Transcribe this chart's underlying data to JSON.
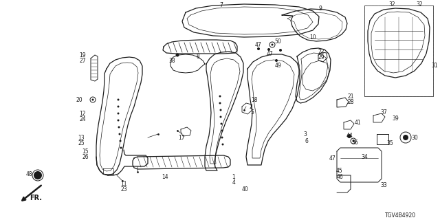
{
  "bg_color": "#ffffff",
  "line_color": "#1a1a1a",
  "diagram_code": "TGV4B4920",
  "figsize": [
    6.4,
    3.2
  ],
  "dpi": 100
}
